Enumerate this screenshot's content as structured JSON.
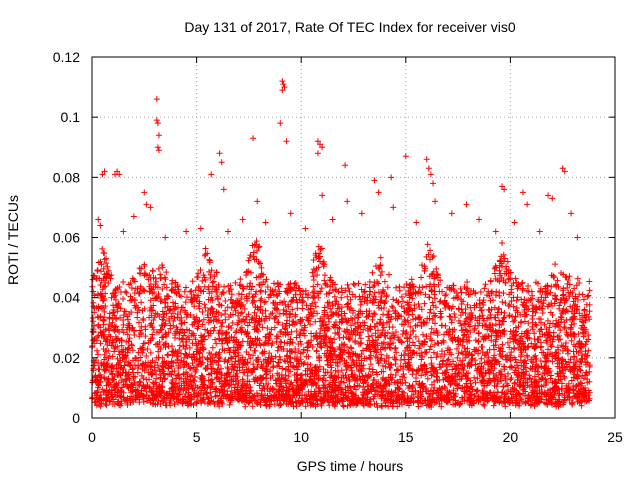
{
  "chart_data": {
    "type": "scatter",
    "title": "Day 131 of 2017, Rate Of TEC Index for receiver vis0",
    "xlabel": "GPS time / hours",
    "ylabel": "ROTI / TECUs",
    "xlim": [
      0,
      25
    ],
    "ylim": [
      0,
      0.12
    ],
    "x_ticks": [
      0,
      5,
      10,
      15,
      20,
      25
    ],
    "y_ticks": [
      0,
      0.02,
      0.04,
      0.06,
      0.08,
      0.1,
      0.12
    ],
    "x_tick_labels": [
      "0",
      "5",
      "10",
      "15",
      "20",
      "25"
    ],
    "y_tick_labels": [
      "0",
      "0.02",
      "0.04",
      "0.06",
      "0.08",
      "0.1",
      "0.12"
    ],
    "grid": true,
    "legend": "none",
    "marker": "plus",
    "color": "#ff0000",
    "series": [
      {
        "name": "ROTI",
        "points": [
          [
            0.5,
            0.081
          ],
          [
            0.6,
            0.082
          ],
          [
            1.1,
            0.081
          ],
          [
            1.2,
            0.082
          ],
          [
            1.3,
            0.081
          ],
          [
            2.5,
            0.075
          ],
          [
            2.6,
            0.071
          ],
          [
            3.1,
            0.106
          ],
          [
            3.1,
            0.099
          ],
          [
            3.15,
            0.098
          ],
          [
            3.2,
            0.094
          ],
          [
            3.15,
            0.09
          ],
          [
            3.2,
            0.089
          ],
          [
            5.7,
            0.081
          ],
          [
            6.1,
            0.088
          ],
          [
            6.2,
            0.085
          ],
          [
            6.3,
            0.076
          ],
          [
            7.7,
            0.093
          ],
          [
            9.1,
            0.112
          ],
          [
            9.15,
            0.111
          ],
          [
            9.2,
            0.11
          ],
          [
            9.1,
            0.109
          ],
          [
            9.0,
            0.098
          ],
          [
            9.3,
            0.092
          ],
          [
            10.8,
            0.092
          ],
          [
            10.9,
            0.091
          ],
          [
            11.0,
            0.09
          ],
          [
            10.8,
            0.088
          ],
          [
            12.1,
            0.084
          ],
          [
            13.5,
            0.079
          ],
          [
            14.3,
            0.08
          ],
          [
            15.0,
            0.087
          ],
          [
            16.0,
            0.086
          ],
          [
            16.1,
            0.083
          ],
          [
            16.2,
            0.081
          ],
          [
            16.3,
            0.078
          ],
          [
            19.6,
            0.077
          ],
          [
            19.7,
            0.076
          ],
          [
            20.6,
            0.075
          ],
          [
            21.8,
            0.074
          ],
          [
            22.5,
            0.083
          ],
          [
            22.6,
            0.082
          ],
          [
            0.3,
            0.066
          ],
          [
            0.4,
            0.064
          ],
          [
            1.5,
            0.062
          ],
          [
            2.0,
            0.067
          ],
          [
            2.8,
            0.07
          ],
          [
            3.5,
            0.06
          ],
          [
            4.5,
            0.062
          ],
          [
            5.2,
            0.063
          ],
          [
            6.5,
            0.062
          ],
          [
            7.2,
            0.066
          ],
          [
            7.9,
            0.072
          ],
          [
            8.3,
            0.065
          ],
          [
            9.5,
            0.068
          ],
          [
            10.2,
            0.063
          ],
          [
            11.0,
            0.074
          ],
          [
            11.5,
            0.066
          ],
          [
            12.2,
            0.072
          ],
          [
            12.9,
            0.068
          ],
          [
            13.7,
            0.075
          ],
          [
            14.4,
            0.07
          ],
          [
            15.5,
            0.065
          ],
          [
            16.4,
            0.072
          ],
          [
            17.2,
            0.068
          ],
          [
            17.9,
            0.071
          ],
          [
            18.5,
            0.066
          ],
          [
            19.3,
            0.062
          ],
          [
            20.2,
            0.065
          ],
          [
            20.8,
            0.071
          ],
          [
            21.4,
            0.062
          ],
          [
            22.0,
            0.073
          ],
          [
            22.9,
            0.068
          ],
          [
            23.2,
            0.06
          ]
        ]
      }
    ],
    "bulk_envelope": {
      "x_range": [
        0,
        23.8
      ],
      "typical_min": 0.005,
      "typical_max": 0.045,
      "peak_bands": [
        [
          0.5,
          0.058
        ],
        [
          2.5,
          0.056
        ],
        [
          3.3,
          0.052
        ],
        [
          5.5,
          0.058
        ],
        [
          7.8,
          0.062
        ],
        [
          10.9,
          0.06
        ],
        [
          13.8,
          0.055
        ],
        [
          16.1,
          0.06
        ],
        [
          19.6,
          0.058
        ],
        [
          22.3,
          0.053
        ]
      ]
    }
  }
}
